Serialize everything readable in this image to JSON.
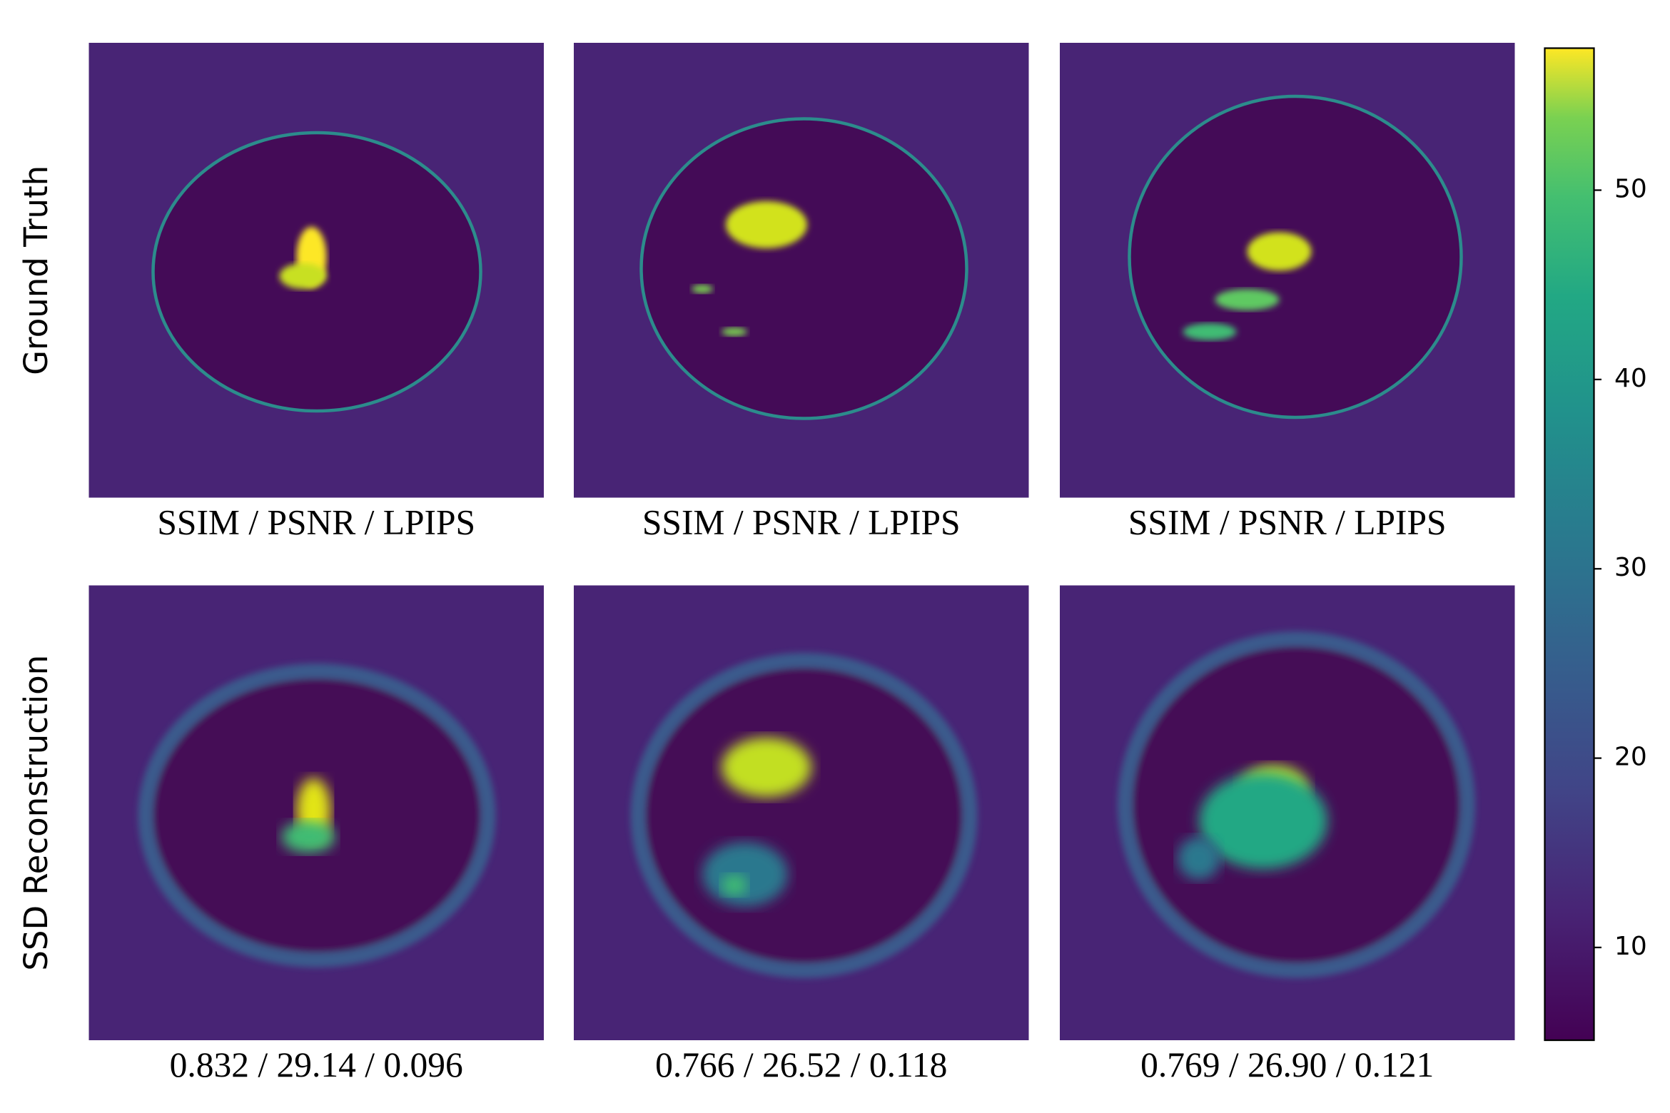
{
  "chart_data": {
    "type": "image-grid",
    "row_labels": [
      "Ground Truth",
      "SSD Reconstruction"
    ],
    "captions": [
      [
        "SSIM / PSNR / LPIPS",
        "SSIM / PSNR / LPIPS",
        "SSIM / PSNR / LPIPS"
      ],
      [
        "0.832 / 29.14 / 0.096",
        "0.766 / 26.52 / 0.118",
        "0.769 / 26.90 / 0.121"
      ]
    ],
    "colormap": "viridis",
    "ylim": [
      5.1,
      57.5
    ],
    "yticks": [
      10,
      20,
      30,
      40,
      50
    ]
  }
}
